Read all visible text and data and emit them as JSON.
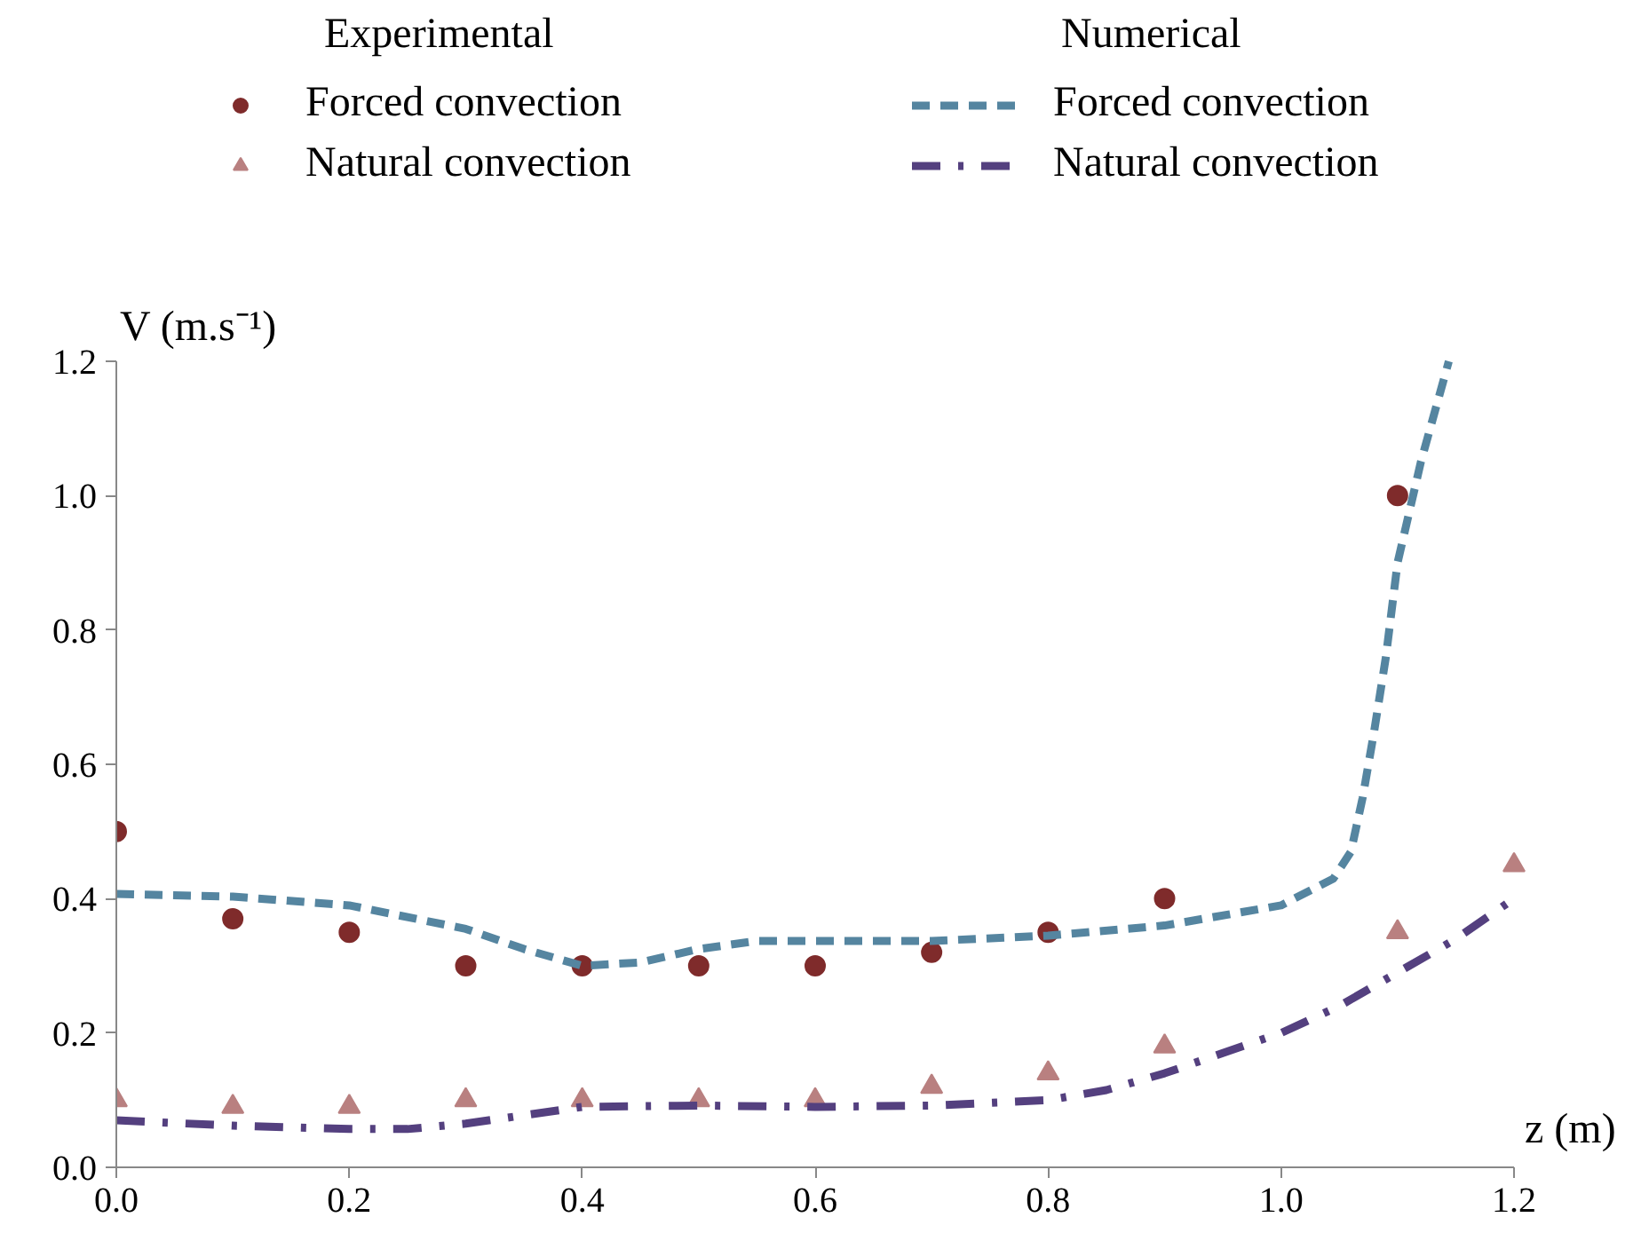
{
  "chart_data": {
    "type": "scatter",
    "xlabel": "z (m)",
    "ylabel": "V (m.s⁻¹)",
    "annotations": [
      "Experimental",
      "Numerical"
    ],
    "xlim": [
      0,
      1.2
    ],
    "ylim": [
      0,
      1.2
    ],
    "xticks": [
      {
        "value": 0,
        "label": "0.0"
      },
      {
        "value": 0.2,
        "label": "0.2"
      },
      {
        "value": 0.4,
        "label": "0.4"
      },
      {
        "value": 0.6,
        "label": "0.6"
      },
      {
        "value": 0.8,
        "label": "0.8"
      },
      {
        "value": 1.0,
        "label": "1.0"
      },
      {
        "value": 1.2,
        "label": "1.2"
      }
    ],
    "yticks": [
      {
        "value": 0,
        "label": "0.0"
      },
      {
        "value": 0.2,
        "label": "0.2"
      },
      {
        "value": 0.4,
        "label": "0.4"
      },
      {
        "value": 0.6,
        "label": "0.6"
      },
      {
        "value": 0.8,
        "label": "0.8"
      },
      {
        "value": 1.0,
        "label": "1.0"
      },
      {
        "value": 1.2,
        "label": "1.2"
      }
    ],
    "grid": false,
    "legend": "top",
    "series": [
      {
        "name": "Forced convection",
        "marker": "circle",
        "color": "#7f2b2b",
        "x": [
          0,
          0.1,
          0.2,
          0.3,
          0.4,
          0.5,
          0.6,
          0.7,
          0.8,
          0.9,
          1.1
        ],
        "values": [
          0.5,
          0.37,
          0.35,
          0.3,
          0.3,
          0.3,
          0.3,
          0.32,
          0.35,
          0.4,
          1.0
        ]
      },
      {
        "name": "Natural convection",
        "marker": "triangle",
        "color": "#b98080",
        "x": [
          0,
          0.1,
          0.2,
          0.3,
          0.4,
          0.5,
          0.6,
          0.7,
          0.8,
          0.9,
          1.1,
          1.2
        ],
        "values": [
          0.1,
          0.09,
          0.09,
          0.1,
          0.1,
          0.1,
          0.1,
          0.12,
          0.14,
          0.18,
          0.35,
          0.45
        ]
      },
      {
        "name": "Forced convection",
        "type": "line",
        "line_style": "dashed",
        "color": "#5585a0",
        "x": [
          0,
          0.1,
          0.2,
          0.3,
          0.35,
          0.4,
          0.45,
          0.5,
          0.55,
          0.6,
          0.7,
          0.8,
          0.9,
          1.0,
          1.045,
          1.06,
          1.07,
          1.08,
          1.09,
          1.1,
          1.12,
          1.144
        ],
        "values": [
          0.407,
          0.403,
          0.39,
          0.355,
          0.325,
          0.3,
          0.305,
          0.325,
          0.337,
          0.337,
          0.337,
          0.345,
          0.36,
          0.39,
          0.43,
          0.47,
          0.55,
          0.65,
          0.76,
          0.9,
          1.05,
          1.2
        ]
      },
      {
        "name": "Natural convection",
        "type": "line",
        "line_style": "dashdot",
        "color": "#54407f",
        "x": [
          0,
          0.1,
          0.2,
          0.25,
          0.3,
          0.4,
          0.5,
          0.6,
          0.7,
          0.8,
          0.85,
          0.9,
          0.95,
          1.0,
          1.05,
          1.1,
          1.15,
          1.2
        ],
        "values": [
          0.07,
          0.062,
          0.057,
          0.057,
          0.065,
          0.09,
          0.092,
          0.09,
          0.092,
          0.1,
          0.115,
          0.14,
          0.17,
          0.2,
          0.24,
          0.29,
          0.34,
          0.4
        ]
      }
    ]
  }
}
